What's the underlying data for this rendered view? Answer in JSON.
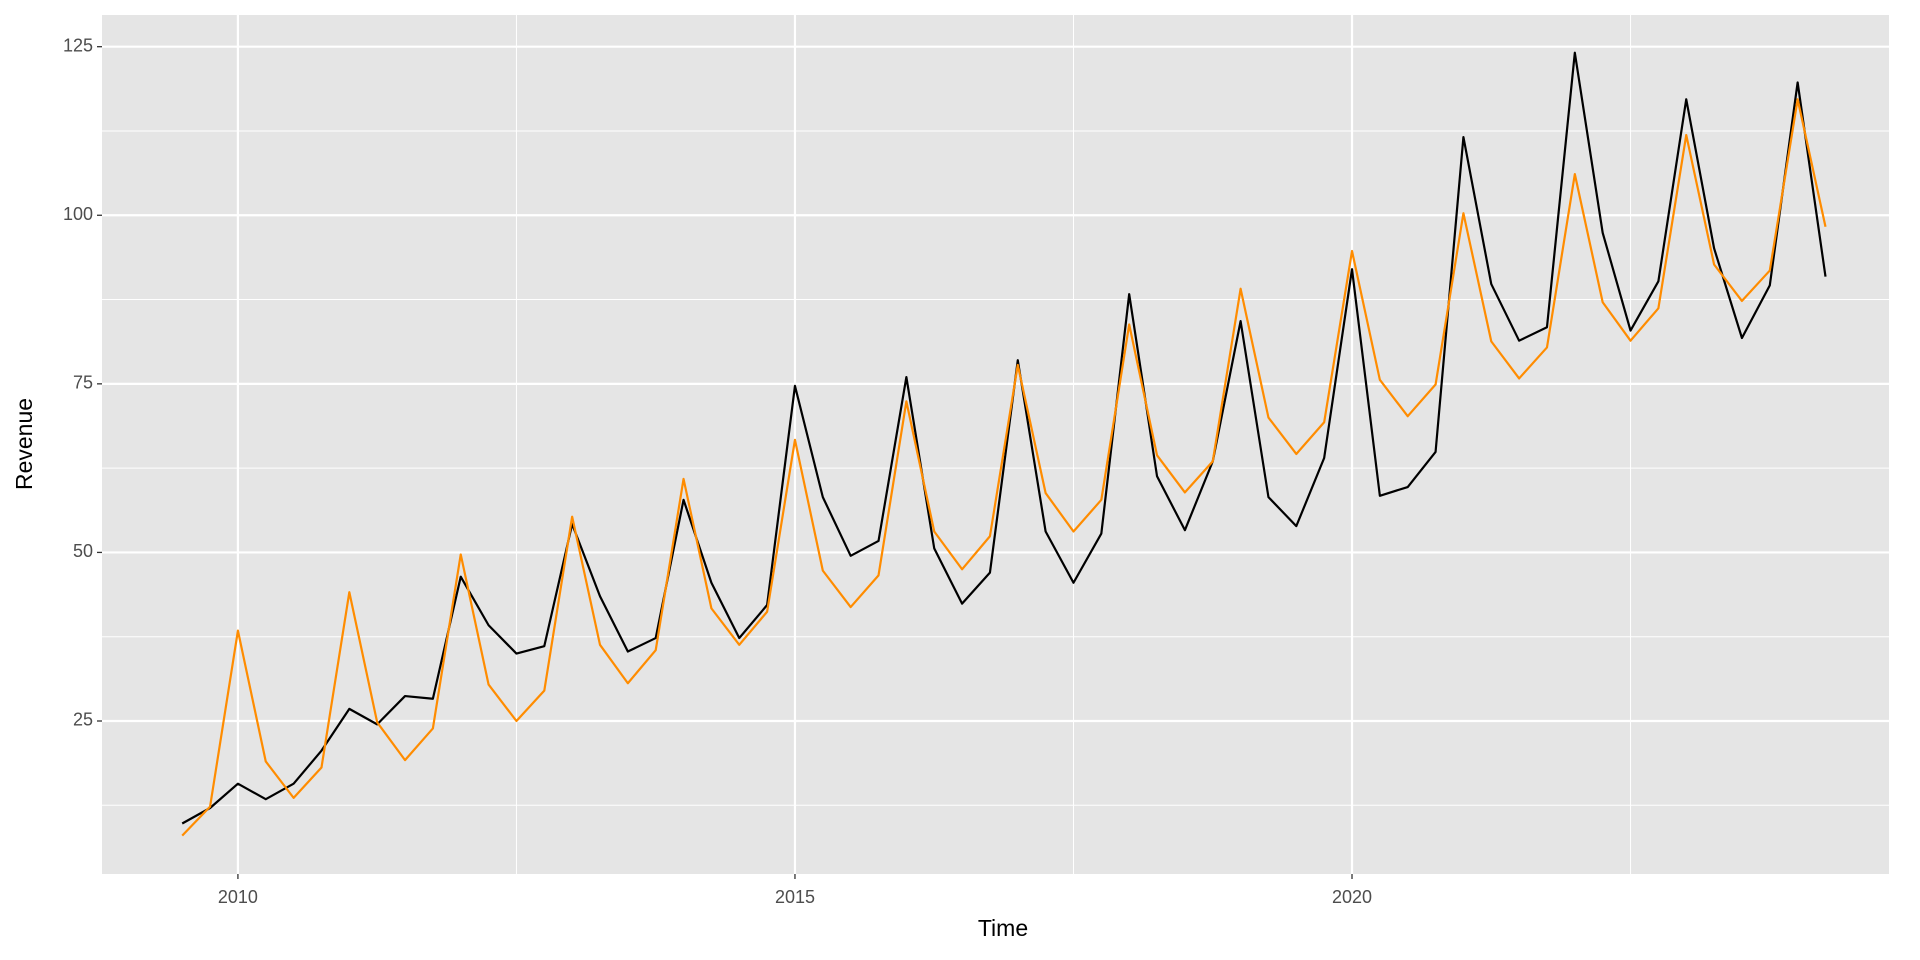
{
  "chart_data": {
    "type": "line",
    "x_label": "Time",
    "y_label": "Revenue",
    "x": [
      2009.5,
      2009.75,
      2010,
      2010.25,
      2010.5,
      2010.75,
      2011,
      2011.25,
      2011.5,
      2011.75,
      2012,
      2012.25,
      2012.5,
      2012.75,
      2013,
      2013.25,
      2013.5,
      2013.75,
      2014,
      2014.25,
      2014.5,
      2014.75,
      2015,
      2015.25,
      2015.5,
      2015.75,
      2016,
      2016.25,
      2016.5,
      2016.75,
      2017,
      2017.25,
      2017.5,
      2017.75,
      2018,
      2018.25,
      2018.5,
      2018.75,
      2019,
      2019.25,
      2019.5,
      2019.75,
      2020,
      2020.25,
      2020.5,
      2020.75,
      2021,
      2021.25,
      2021.5,
      2021.75,
      2022,
      2022.25,
      2022.5,
      2022.75,
      2023,
      2023.25,
      2023.5,
      2023.75,
      2024,
      2024.25
    ],
    "series": [
      {
        "color": "#000000",
        "values": [
          9.8,
          12.1,
          15.7,
          13.4,
          15.7,
          20.6,
          26.8,
          24.5,
          28.7,
          28.3,
          46.4,
          39.2,
          35.0,
          36.1,
          54.2,
          43.5,
          35.3,
          37.3,
          57.8,
          45.5,
          37.3,
          42.2,
          74.7,
          58.2,
          49.5,
          51.7,
          76.0,
          50.6,
          42.4,
          47.0,
          78.5,
          53.1,
          45.5,
          52.8,
          88.3,
          61.3,
          53.3,
          63.5,
          84.3,
          58.2,
          53.9,
          64.0,
          92.0,
          58.4,
          59.7,
          64.9,
          111.6,
          89.8,
          81.4,
          83.4,
          124.1,
          97.4,
          82.9,
          90.2,
          117.2,
          95.1,
          81.8,
          89.6,
          119.7,
          90.9
        ]
      },
      {
        "color": "#ff8c00",
        "values": [
          8.0,
          12.3,
          38.4,
          19.0,
          13.6,
          18.1,
          44.1,
          24.8,
          19.2,
          23.9,
          49.7,
          30.4,
          25.0,
          29.5,
          55.3,
          36.3,
          30.6,
          35.5,
          60.9,
          41.7,
          36.3,
          41.2,
          66.7,
          47.3,
          41.9,
          46.6,
          72.4,
          53.1,
          47.5,
          52.4,
          77.8,
          58.8,
          53.1,
          57.8,
          83.8,
          64.4,
          58.9,
          63.5,
          89.1,
          70.0,
          64.6,
          69.3,
          94.7,
          75.6,
          70.2,
          74.9,
          100.3,
          81.3,
          75.8,
          80.4,
          106.1,
          87.1,
          81.4,
          86.2,
          111.9,
          92.7,
          87.3,
          91.8,
          117.2,
          98.3
        ]
      }
    ],
    "xlim": [
      2008.78,
      2024.82
    ],
    "ylim": [
      2.31,
      129.7
    ],
    "xticks": [
      2010,
      2015,
      2020
    ],
    "yticks": [
      25,
      50,
      75,
      100,
      125
    ],
    "minor_xticks": [
      2012.5,
      2017.5,
      2022.5
    ],
    "minor_yticks": [
      12.5,
      37.5,
      62.5,
      87.5,
      112.5
    ],
    "grid": true,
    "panel_color": "#e5e5e5",
    "grid_color": "#ffffff"
  }
}
